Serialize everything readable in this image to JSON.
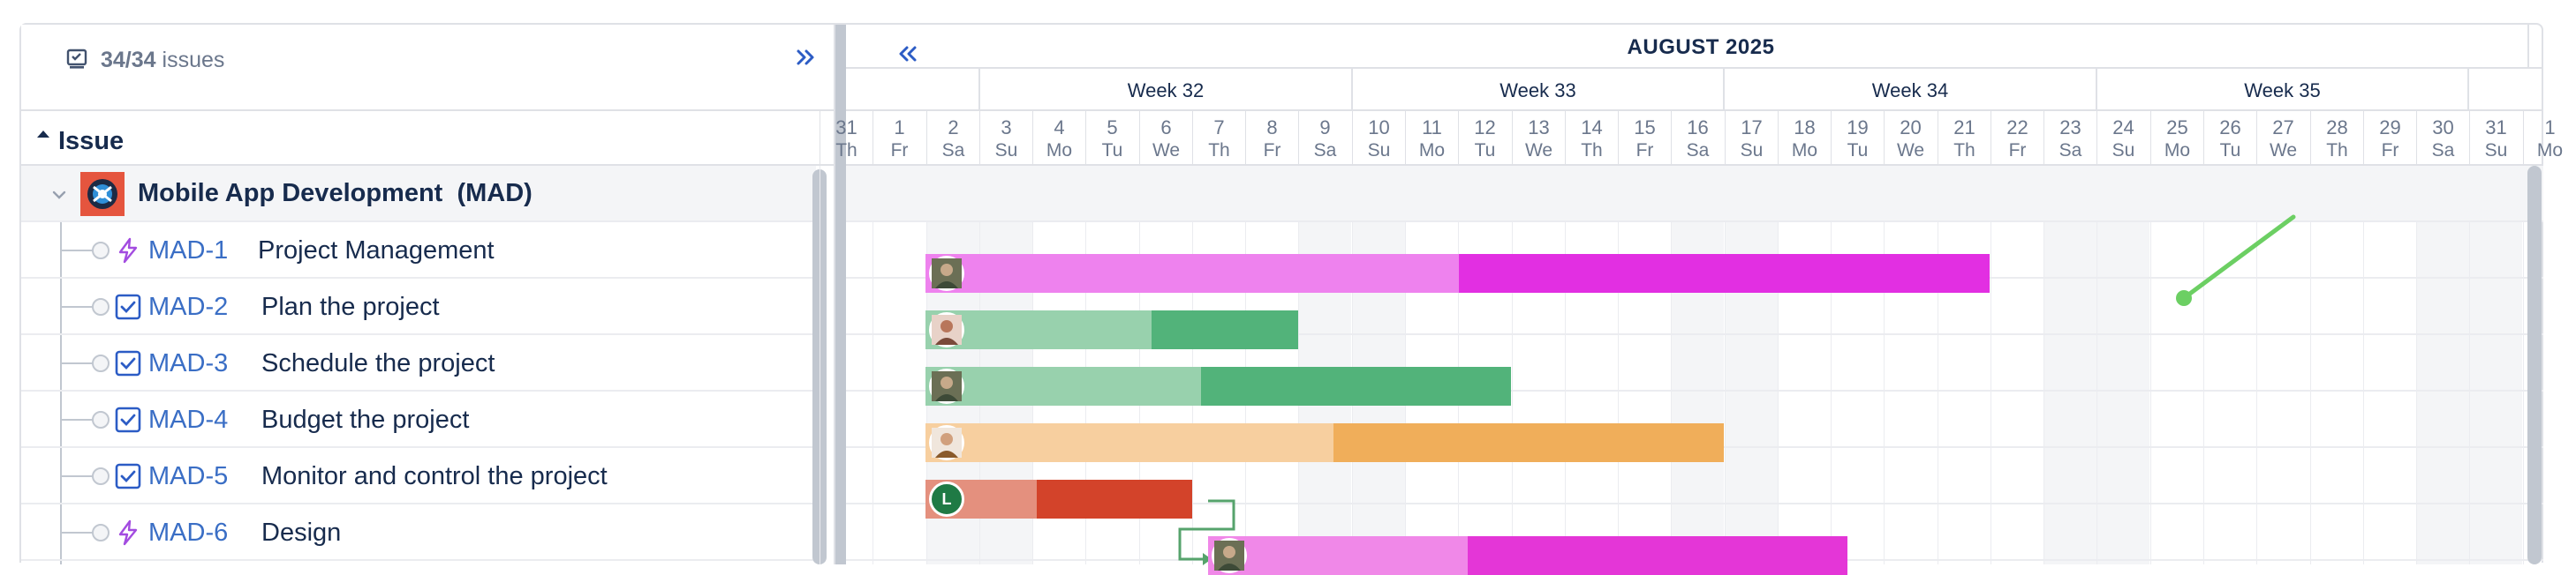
{
  "header": {
    "count_value": "34/34",
    "count_suffix": "issues",
    "column_title": "Issue"
  },
  "group": {
    "label": "Mobile App Development  (MAD)"
  },
  "issues": [
    {
      "key": "MAD-1",
      "summary": "Project Management",
      "type": "epic-lightning-icon"
    },
    {
      "key": "MAD-2",
      "summary": "Plan the project",
      "type": "task-checkbox-icon"
    },
    {
      "key": "MAD-3",
      "summary": "Schedule the project",
      "type": "task-checkbox-icon"
    },
    {
      "key": "MAD-4",
      "summary": "Budget the project",
      "type": "task-checkbox-icon"
    },
    {
      "key": "MAD-5",
      "summary": "Monitor and control the project",
      "type": "task-checkbox-icon"
    },
    {
      "key": "MAD-6",
      "summary": "Design",
      "type": "epic-lightning-icon"
    }
  ],
  "timeline": {
    "month": "AUGUST 2025",
    "weeks": [
      "Week 32",
      "Week 33",
      "Week 34",
      "Week 35"
    ],
    "days": [
      {
        "num": "31",
        "dow": "Th"
      },
      {
        "num": "1",
        "dow": "Fr"
      },
      {
        "num": "2",
        "dow": "Sa"
      },
      {
        "num": "3",
        "dow": "Su"
      },
      {
        "num": "4",
        "dow": "Mo"
      },
      {
        "num": "5",
        "dow": "Tu"
      },
      {
        "num": "6",
        "dow": "We"
      },
      {
        "num": "7",
        "dow": "Th"
      },
      {
        "num": "8",
        "dow": "Fr"
      },
      {
        "num": "9",
        "dow": "Sa"
      },
      {
        "num": "10",
        "dow": "Su"
      },
      {
        "num": "11",
        "dow": "Mo"
      },
      {
        "num": "12",
        "dow": "Tu"
      },
      {
        "num": "13",
        "dow": "We"
      },
      {
        "num": "14",
        "dow": "Th"
      },
      {
        "num": "15",
        "dow": "Fr"
      },
      {
        "num": "16",
        "dow": "Sa"
      },
      {
        "num": "17",
        "dow": "Su"
      },
      {
        "num": "18",
        "dow": "Mo"
      },
      {
        "num": "19",
        "dow": "Tu"
      },
      {
        "num": "20",
        "dow": "We"
      },
      {
        "num": "21",
        "dow": "Th"
      },
      {
        "num": "22",
        "dow": "Fr"
      },
      {
        "num": "23",
        "dow": "Sa"
      },
      {
        "num": "24",
        "dow": "Su"
      },
      {
        "num": "25",
        "dow": "Mo"
      },
      {
        "num": "26",
        "dow": "Tu"
      },
      {
        "num": "27",
        "dow": "We"
      },
      {
        "num": "28",
        "dow": "Th"
      },
      {
        "num": "29",
        "dow": "Fr"
      },
      {
        "num": "30",
        "dow": "Sa"
      },
      {
        "num": "31",
        "dow": "Su"
      },
      {
        "num": "1",
        "dow": "Mo"
      }
    ],
    "bars": [
      {
        "issue": "MAD-1",
        "done_color": "#ee82ee",
        "todo_color": "#e22fe2",
        "avatar": "photo"
      },
      {
        "issue": "MAD-2",
        "done_color": "#98d1ad",
        "todo_color": "#52b37a",
        "avatar": "photo"
      },
      {
        "issue": "MAD-3",
        "done_color": "#98d1ad",
        "todo_color": "#52b37a",
        "avatar": "photo"
      },
      {
        "issue": "MAD-4",
        "done_color": "#f7cf9f",
        "todo_color": "#f0ae5a",
        "avatar": "photo"
      },
      {
        "issue": "MAD-5",
        "done_color": "#e4907e",
        "todo_color": "#d3432a",
        "avatar": "L"
      },
      {
        "issue": "MAD-6",
        "done_color": "#f088e8",
        "todo_color": "#e436d7",
        "avatar": "photo"
      }
    ]
  },
  "colors": {
    "accent_blue": "#3a6ec5",
    "dependency_green": "#56a36c",
    "today_line_green": "#6ccf63",
    "project_avatar": "#e5553e"
  }
}
